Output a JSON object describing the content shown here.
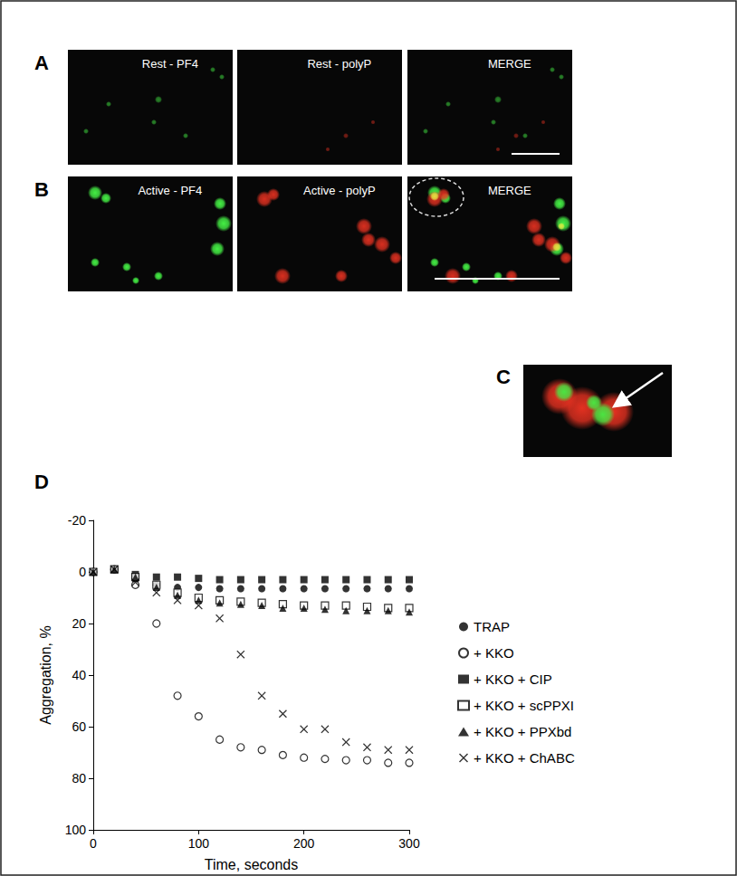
{
  "panels": [
    {
      "label": "A",
      "images": [
        "Rest - PF4",
        "Rest - polyP",
        "MERGE"
      ]
    },
    {
      "label": "B",
      "images": [
        "Active - PF4",
        "Active - polyP",
        "MERGE"
      ]
    },
    {
      "label": "C"
    },
    {
      "label": "D"
    }
  ],
  "chart_data": {
    "type": "scatter",
    "x_label": "Time, seconds",
    "y_label": "Aggregation, %",
    "x": [
      0,
      20,
      40,
      60,
      80,
      100,
      120,
      140,
      160,
      180,
      200,
      220,
      240,
      260,
      280,
      300
    ],
    "xlim": [
      0,
      300
    ],
    "xticks": [
      0,
      100,
      200,
      300
    ],
    "ylim": [
      100,
      -20
    ],
    "yticks": [
      -20,
      0,
      20,
      40,
      60,
      80,
      100
    ],
    "grid": false,
    "legend": "right",
    "series": [
      {
        "name": "TRAP",
        "marker": "circle",
        "color": "#000000",
        "values": [
          0,
          -1,
          3,
          5,
          6,
          6,
          6.5,
          6.5,
          6.5,
          6.5,
          6.5,
          6.5,
          6.5,
          6.5,
          6.5,
          6.5
        ]
      },
      {
        "name": "+ KKO",
        "marker": "open_circle",
        "color": "#000000",
        "values": [
          0,
          -1,
          5,
          20,
          48,
          56,
          65,
          68,
          69,
          71,
          72,
          72.5,
          73,
          73,
          74,
          74
        ]
      },
      {
        "name": "+ KKO + CIP",
        "marker": "square",
        "color": "#000000",
        "values": [
          0,
          -1,
          1,
          2,
          2,
          2.5,
          3,
          3,
          3,
          3,
          3,
          3,
          3,
          3,
          3,
          3
        ]
      },
      {
        "name": "+ KKO + scPPXI",
        "marker": "open_square",
        "color": "#000000",
        "values": [
          0,
          -1,
          2,
          5,
          8,
          10,
          11,
          11.5,
          12,
          12.5,
          13,
          13,
          13,
          13.5,
          14,
          14
        ]
      },
      {
        "name": "+ KKO + PPXbd",
        "marker": "triangle",
        "color": "#000000",
        "values": [
          0,
          -1,
          2,
          6,
          9,
          11,
          12,
          12.5,
          13,
          14,
          14,
          14.5,
          15,
          15,
          15,
          15.5
        ]
      },
      {
        "name": "+ KKO + ChABC",
        "marker": "x",
        "color": "#000000",
        "values": [
          0,
          -1,
          4,
          8,
          11,
          13,
          18,
          32,
          48,
          55,
          61,
          61,
          66,
          68,
          69,
          69
        ]
      }
    ]
  }
}
